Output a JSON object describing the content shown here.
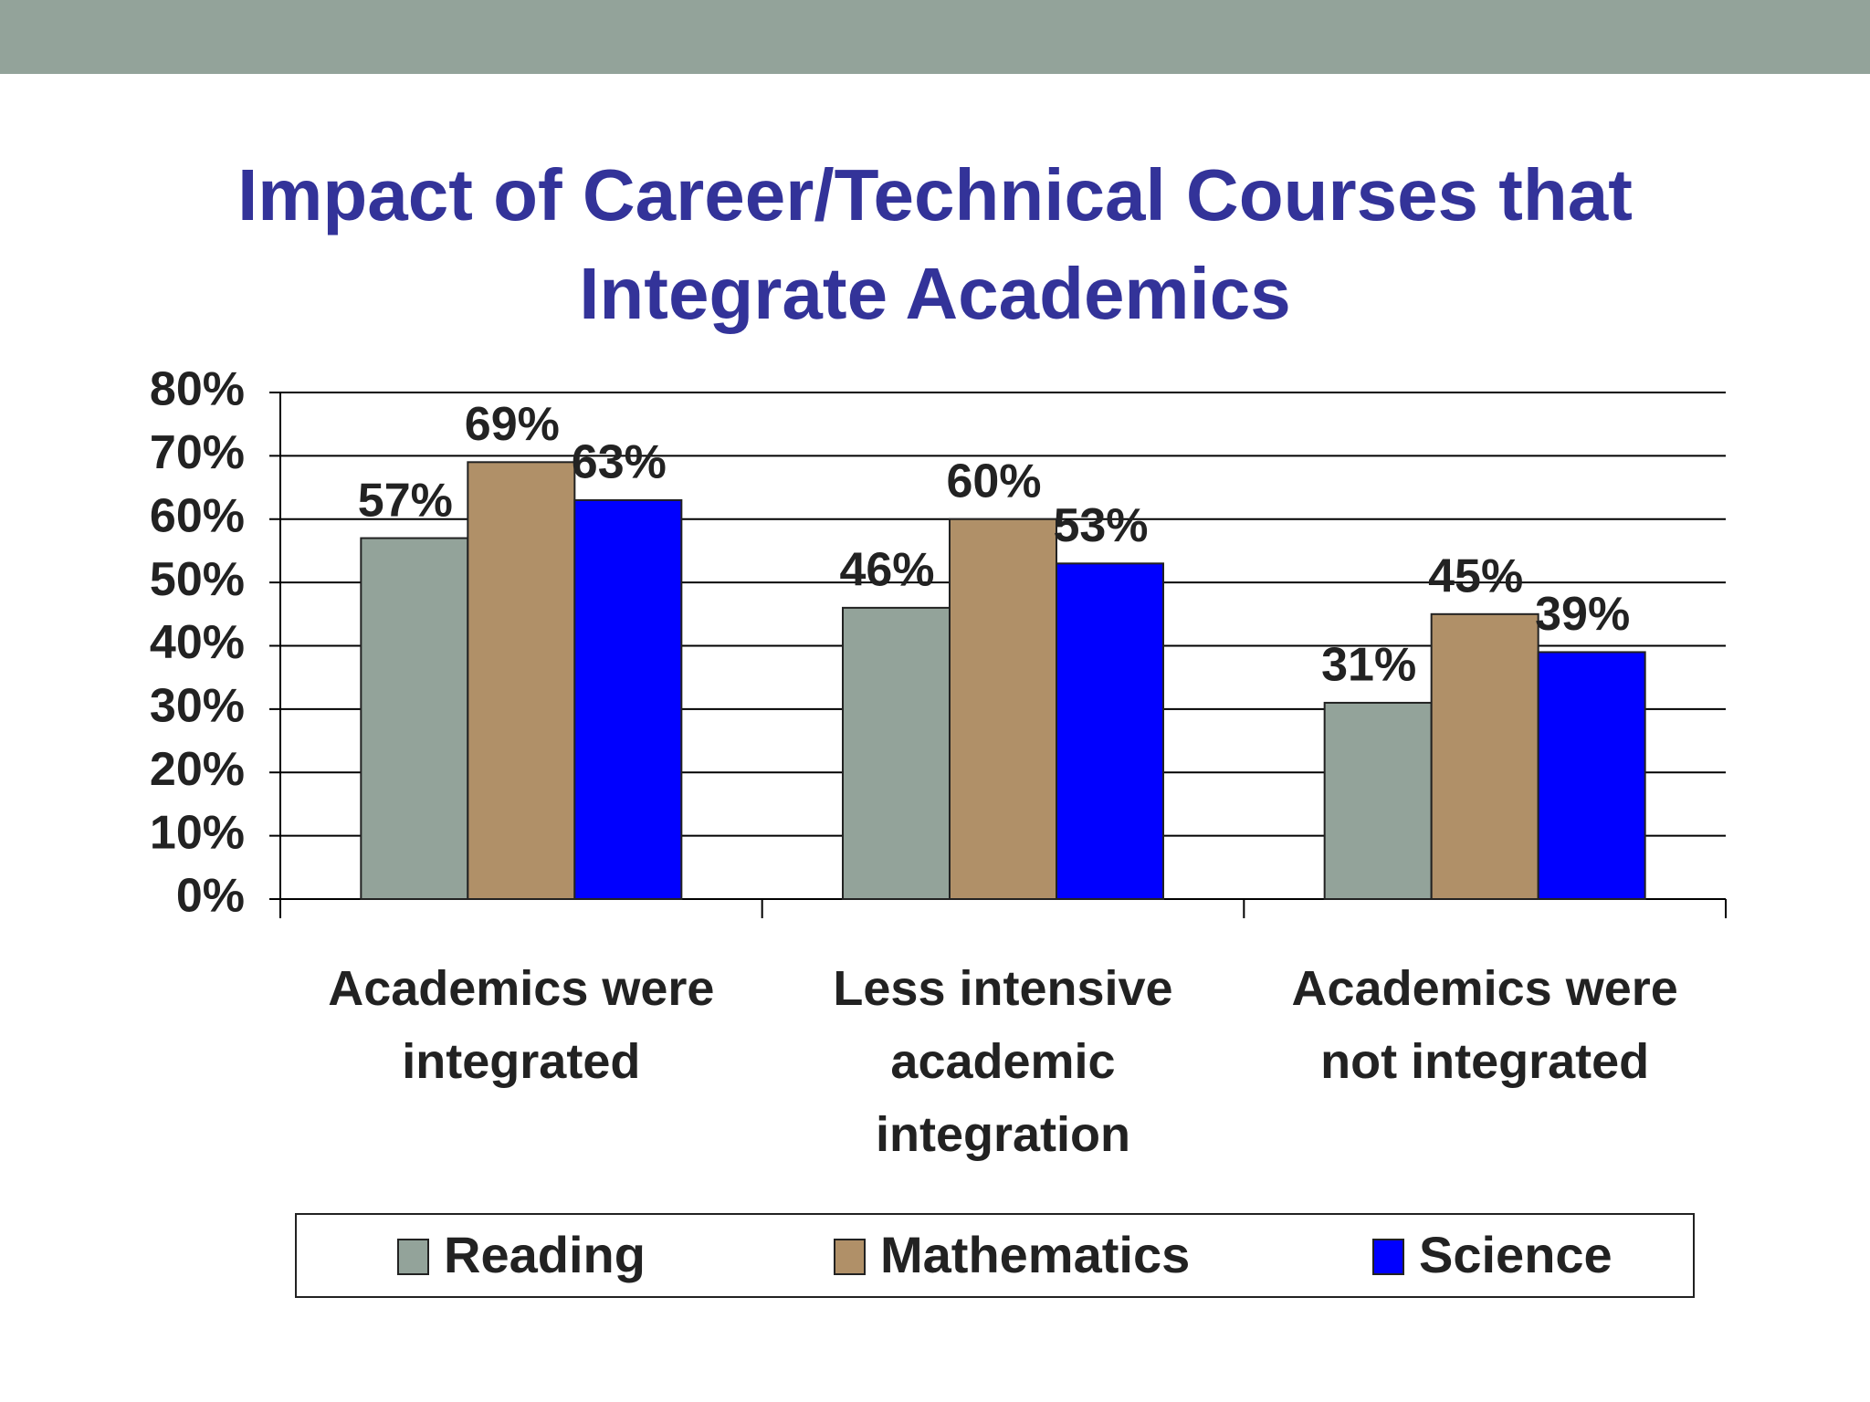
{
  "chart_data": {
    "type": "bar",
    "title": "Impact of Career/Technical Courses that Integrate Academics",
    "categories": [
      "Academics were integrated",
      "Less intensive academic integration",
      "Academics were not integrated"
    ],
    "series": [
      {
        "name": "Reading",
        "color": "#93a39a",
        "values": [
          57,
          46,
          31
        ],
        "value_labels": [
          "57%",
          "46%",
          "31%"
        ]
      },
      {
        "name": "Mathematics",
        "color": "#b09068",
        "values": [
          69,
          60,
          45
        ],
        "value_labels": [
          "69%",
          "60%",
          "45%"
        ]
      },
      {
        "name": "Science",
        "color": "#0000ff",
        "values": [
          63,
          53,
          39
        ],
        "value_labels": [
          "63%",
          "53%",
          "39%"
        ]
      }
    ],
    "ylim": [
      0,
      80
    ],
    "yticks": [
      {
        "value": 0,
        "label": "0%"
      },
      {
        "value": 10,
        "label": "10%"
      },
      {
        "value": 20,
        "label": "20%"
      },
      {
        "value": 30,
        "label": "30%"
      },
      {
        "value": 40,
        "label": "40%"
      },
      {
        "value": 50,
        "label": "50%"
      },
      {
        "value": 60,
        "label": "60%"
      },
      {
        "value": 70,
        "label": "70%"
      },
      {
        "value": 80,
        "label": "80%"
      }
    ],
    "grid": true,
    "legend": "bottom"
  }
}
